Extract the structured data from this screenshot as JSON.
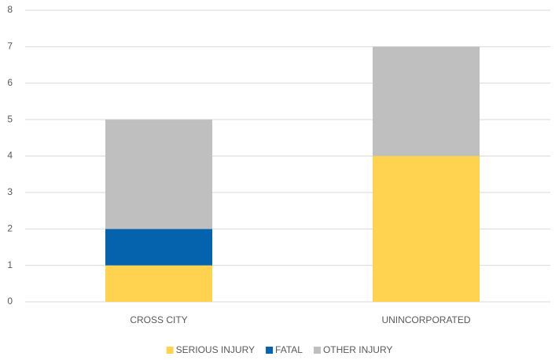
{
  "chart_data": {
    "type": "stacked_bar",
    "categories": [
      "CROSS CITY",
      "UNINCORPORATED"
    ],
    "series": [
      {
        "name": "SERIOUS INJURY",
        "color": "#ffd24f",
        "values": [
          1,
          4
        ]
      },
      {
        "name": "FATAL",
        "color": "#0562ad",
        "values": [
          1,
          0
        ]
      },
      {
        "name": "OTHER INJURY",
        "color": "#bfbfbf",
        "values": [
          3,
          3
        ]
      }
    ],
    "ylim": [
      0,
      8
    ],
    "yticks": [
      0,
      1,
      2,
      3,
      4,
      5,
      6,
      7,
      8
    ],
    "grid": true,
    "legend": "bottom"
  }
}
